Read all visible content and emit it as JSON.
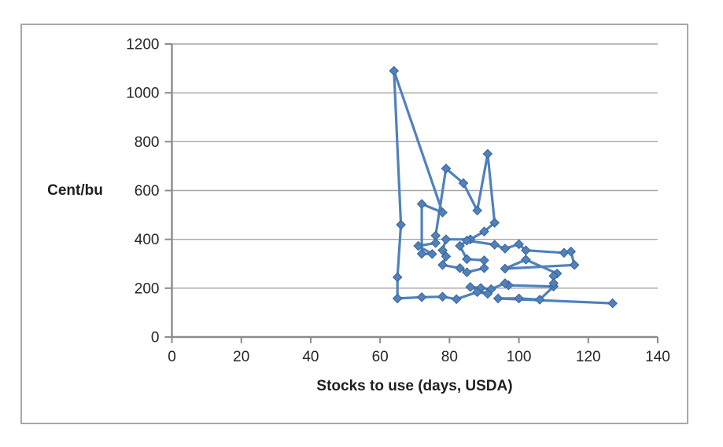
{
  "page": {
    "background": "#ffffff",
    "frame_border_color": "#a8a8a8"
  },
  "chart_data": {
    "type": "line",
    "title": "",
    "ylabel": "Cent/bu",
    "xlabel": "Stocks to use (days, USDA)",
    "xlim": [
      0,
      140
    ],
    "ylim": [
      0,
      1200
    ],
    "xticks": [
      0,
      20,
      40,
      60,
      80,
      100,
      120,
      140
    ],
    "yticks": [
      0,
      200,
      400,
      600,
      800,
      1000,
      1200
    ],
    "grid": "horizontal",
    "legend": "none",
    "series_color": "#4f81bd",
    "marker_edge_color": "#3a6293",
    "gridline_color": "#a6a6a6",
    "axis_color": "#8c8c8c",
    "marker": "diamond",
    "series": [
      {
        "name": "price vs stocks-to-use (connected scatter)",
        "points": [
          [
            127,
            138
          ],
          [
            94,
            158
          ],
          [
            100,
            158
          ],
          [
            106,
            153
          ],
          [
            110,
            207
          ],
          [
            97,
            212
          ],
          [
            96,
            220
          ],
          [
            92,
            196
          ],
          [
            89,
            201
          ],
          [
            86,
            205
          ],
          [
            91,
            177
          ],
          [
            88,
            184
          ],
          [
            82,
            155
          ],
          [
            78,
            165
          ],
          [
            72,
            163
          ],
          [
            65,
            158
          ],
          [
            65,
            245
          ],
          [
            66,
            460
          ],
          [
            64,
            1090
          ],
          [
            78,
            510
          ],
          [
            72,
            545
          ],
          [
            72,
            341
          ],
          [
            75,
            340
          ],
          [
            71,
            373
          ],
          [
            76,
            385
          ],
          [
            76,
            415
          ],
          [
            79,
            690
          ],
          [
            84,
            630
          ],
          [
            88,
            518
          ],
          [
            91,
            750
          ],
          [
            93,
            468
          ],
          [
            90,
            432
          ],
          [
            86,
            400
          ],
          [
            79,
            400
          ],
          [
            78,
            355
          ],
          [
            79,
            330
          ],
          [
            78,
            295
          ],
          [
            83,
            282
          ],
          [
            85,
            265
          ],
          [
            90,
            282
          ],
          [
            90,
            314
          ],
          [
            85,
            319
          ],
          [
            83,
            373
          ],
          [
            85,
            395
          ],
          [
            93,
            378
          ],
          [
            96,
            362
          ],
          [
            100,
            380
          ],
          [
            102,
            355
          ],
          [
            113,
            345
          ],
          [
            115,
            350
          ],
          [
            116,
            295
          ],
          [
            96,
            280
          ],
          [
            102,
            317
          ],
          [
            111,
            260
          ],
          [
            110,
            250
          ],
          [
            110,
            220
          ]
        ]
      }
    ]
  }
}
